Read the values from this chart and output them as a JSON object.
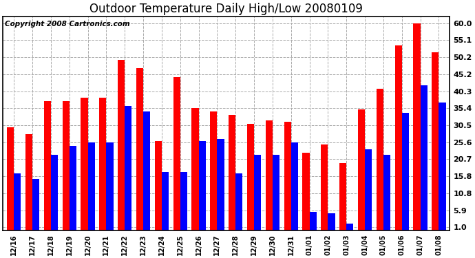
{
  "title": "Outdoor Temperature Daily High/Low 20080109",
  "copyright": "Copyright 2008 Cartronics.com",
  "dates": [
    "12/16",
    "12/17",
    "12/18",
    "12/19",
    "12/20",
    "12/21",
    "12/22",
    "12/23",
    "12/24",
    "12/25",
    "12/26",
    "12/27",
    "12/28",
    "12/29",
    "12/30",
    "12/31",
    "01/01",
    "01/02",
    "01/03",
    "01/04",
    "01/05",
    "01/06",
    "01/07",
    "01/08"
  ],
  "highs": [
    30.0,
    28.0,
    37.5,
    37.5,
    38.5,
    38.5,
    49.5,
    47.0,
    26.0,
    44.5,
    35.5,
    34.5,
    33.5,
    31.0,
    32.0,
    31.5,
    22.5,
    25.0,
    19.5,
    35.0,
    41.0,
    53.5,
    60.0,
    51.5
  ],
  "lows": [
    16.5,
    15.0,
    22.0,
    24.5,
    25.5,
    25.5,
    36.0,
    34.5,
    17.0,
    17.0,
    26.0,
    26.5,
    16.5,
    22.0,
    22.0,
    25.5,
    5.5,
    5.0,
    2.0,
    23.5,
    22.0,
    34.0,
    42.0,
    37.0
  ],
  "high_color": "#ff0000",
  "low_color": "#0000ff",
  "background_color": "#ffffff",
  "plot_bg_color": "#ffffff",
  "grid_color": "#aaaaaa",
  "yticks": [
    1.0,
    5.9,
    10.8,
    15.8,
    20.7,
    25.6,
    30.5,
    35.4,
    40.3,
    45.2,
    50.2,
    55.1,
    60.0
  ],
  "ymin": 0,
  "ymax": 62,
  "bar_width": 0.38,
  "title_fontsize": 12,
  "copyright_fontsize": 7.5
}
